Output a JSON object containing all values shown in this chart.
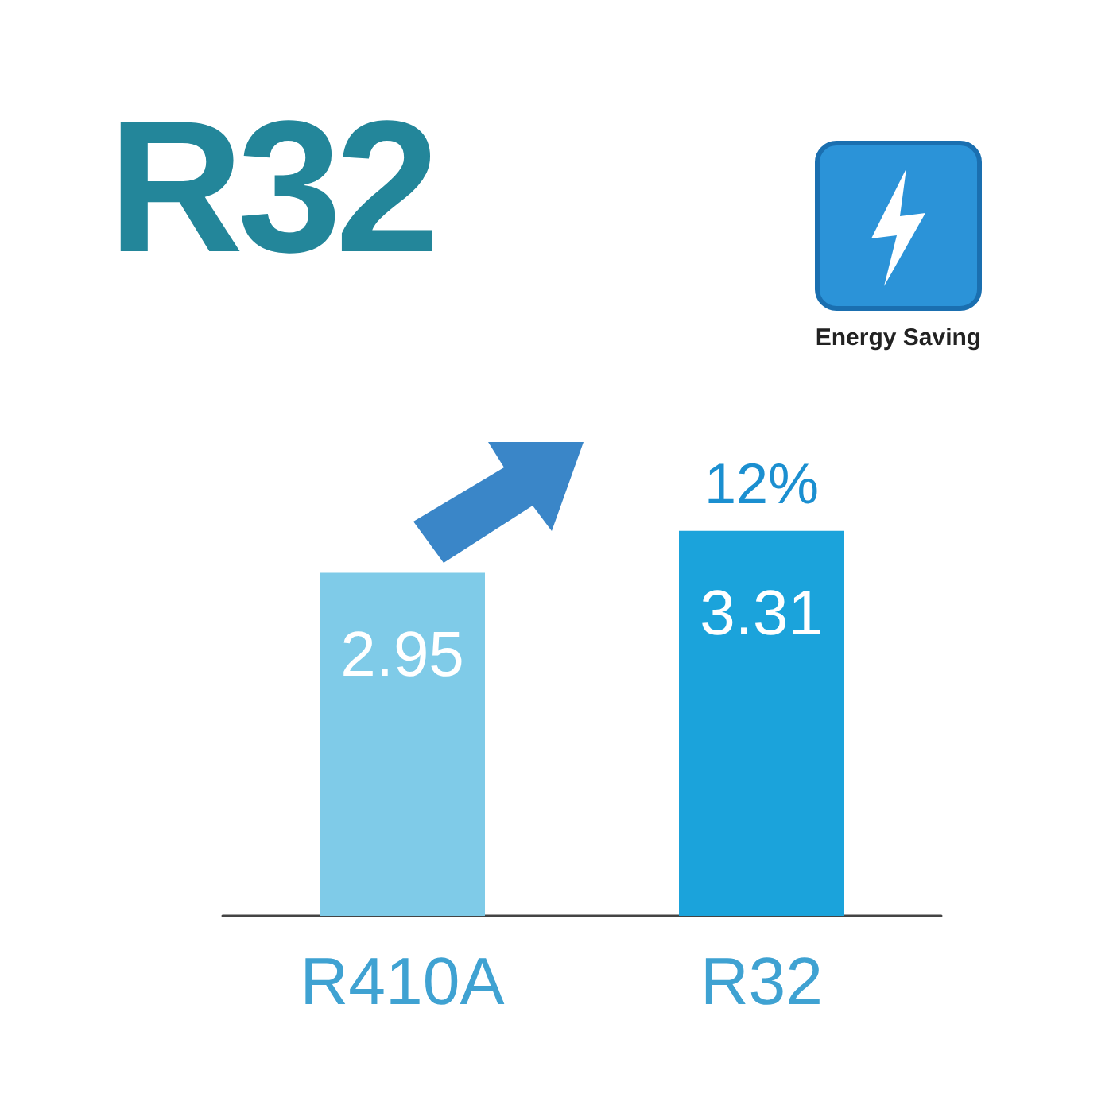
{
  "chart_data": {
    "type": "bar",
    "title": "R32",
    "categories": [
      "R410A",
      "R32"
    ],
    "values": [
      2.95,
      3.31
    ],
    "colors": [
      "#7fcbe8",
      "#1ba3db"
    ],
    "data_labels": true,
    "annotations": [
      {
        "text": "12%",
        "x": "R32",
        "y": 3.31
      },
      "Energy Saving"
    ]
  }
}
